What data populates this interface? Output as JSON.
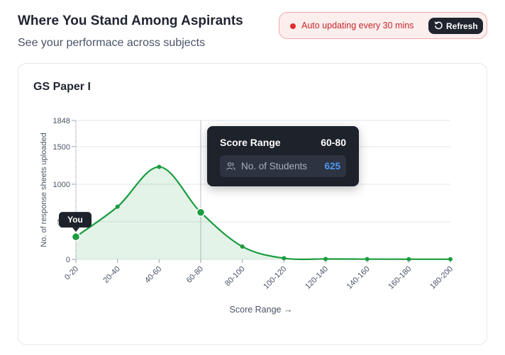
{
  "header": {
    "title": "Where You Stand Among Aspirants",
    "subtitle": "See your performace across subjects"
  },
  "status": {
    "auto_update_text": "Auto updating every 30 mins",
    "refresh_label": "Refresh",
    "dot_color": "#e12d2d"
  },
  "card": {
    "title": "GS Paper I"
  },
  "tooltip": {
    "label": "Score Range",
    "range": "60-80",
    "students_label": "No. of Students",
    "students_value": "625"
  },
  "you_marker": {
    "label": "You",
    "category": "0-20"
  },
  "chart_data": {
    "type": "area",
    "categories": [
      "0-20",
      "20-40",
      "40-60",
      "60-80",
      "80-100",
      "100-120",
      "120-140",
      "140-160",
      "160-180",
      "180-200"
    ],
    "series": [
      {
        "values": [
          300,
          700,
          1230,
          625,
          170,
          15,
          5,
          3,
          2,
          2
        ]
      }
    ],
    "xlabel": "Score Range →",
    "ylabel": "No. of response sheets uploaded",
    "yticks": [
      0,
      500,
      1000,
      1500,
      1848
    ],
    "ylim": [
      0,
      1848
    ],
    "grid": true,
    "colors": {
      "line": "#1a9c3e",
      "fill": "#1a9c3e"
    },
    "highlight_category": "60-80"
  }
}
